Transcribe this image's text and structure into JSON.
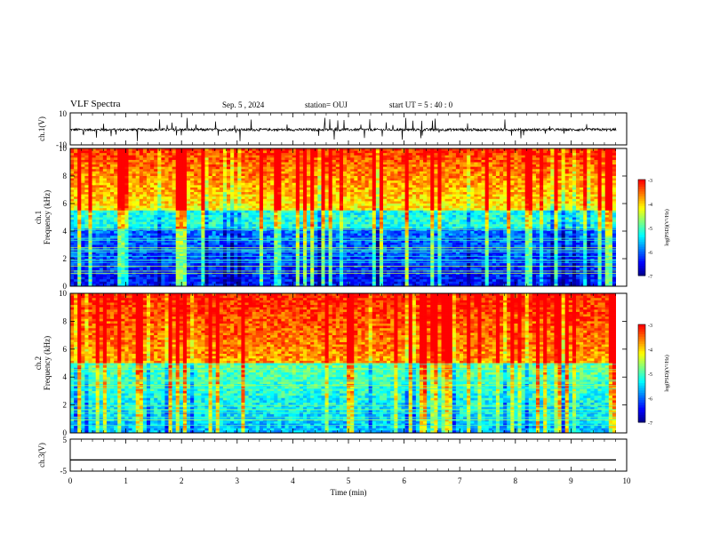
{
  "header": {
    "title": "VLF Spectra",
    "date": "Sep. 5 , 2024",
    "station": "station= OUJ",
    "start_ut": "start UT = 5 : 40 : 0"
  },
  "chart_data": [
    {
      "type": "line",
      "ylabel": "ch.1(V)",
      "ylim": [
        -10,
        10
      ],
      "ytick_labels": [
        "10",
        "-10"
      ],
      "description_values": {
        "baseline_v": -0.5
      }
    },
    {
      "type": "heatmap",
      "ylabel_lines": [
        "ch.1",
        "Frequency (kHz)"
      ],
      "ylim": [
        0,
        10
      ],
      "yticks": [
        0,
        2,
        4,
        6,
        8,
        10
      ],
      "colorbar": {
        "label": "log(PSD)(V²/Hz)",
        "range": [
          -7,
          -3
        ],
        "ticks": [
          -3,
          -4,
          -5,
          -6,
          -7
        ]
      }
    },
    {
      "type": "heatmap",
      "ylabel_lines": [
        "ch.2",
        "Frequency (kHz)"
      ],
      "ylim": [
        0,
        10
      ],
      "yticks": [
        0,
        2,
        4,
        6,
        8,
        10
      ],
      "colorbar": {
        "label": "log(PSD)(V²/Hz)",
        "range": [
          -7,
          -3
        ],
        "ticks": [
          -3,
          -4,
          -5,
          -6,
          -7
        ]
      }
    },
    {
      "type": "line",
      "ylabel": "ch.3(V)",
      "ylim": [
        -5,
        5
      ],
      "ytick_labels": [
        "5",
        "-5"
      ],
      "values_const": -1.5
    }
  ],
  "xaxis": {
    "label": "Time (min)",
    "xlim": [
      0,
      10
    ],
    "ticks": [
      0,
      1,
      2,
      3,
      4,
      5,
      6,
      7,
      8,
      9,
      10
    ]
  },
  "colors": [
    "#00007f",
    "#0000ff",
    "#007fff",
    "#00ffff",
    "#7fff7f",
    "#ffff00",
    "#ff7f00",
    "#ff0000"
  ]
}
